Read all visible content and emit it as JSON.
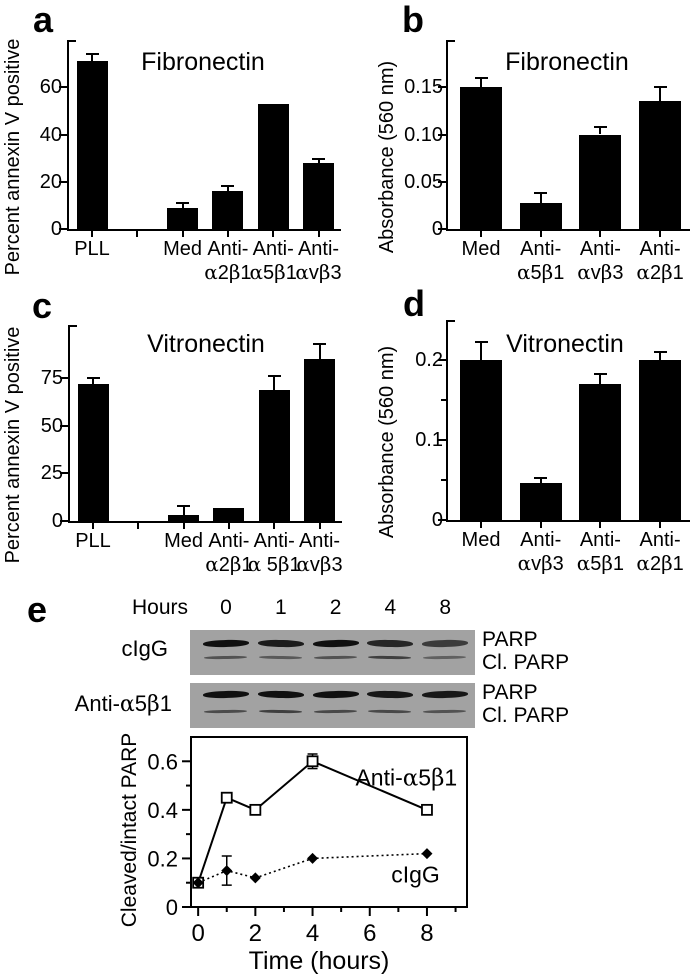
{
  "panels": {
    "a": {
      "letter": "a"
    },
    "b": {
      "letter": "b"
    },
    "c": {
      "letter": "c"
    },
    "d": {
      "letter": "d"
    },
    "e": {
      "letter": "e"
    }
  },
  "panel_e": {
    "hours_label": "Hours",
    "lanes": [
      "0",
      "1",
      "2",
      "4",
      "8"
    ],
    "blots": [
      {
        "row_label": "cIgG",
        "band_labels": [
          "PARP",
          "Cl. PARP"
        ],
        "parp_intensity": [
          1,
          0.92,
          1,
          0.85,
          0.7
        ],
        "cl_parp_intensity": [
          0.55,
          0.5,
          0.55,
          0.68,
          0.45
        ]
      },
      {
        "row_label": "Anti-α5β1",
        "band_labels": [
          "PARP",
          "Cl. PARP"
        ],
        "parp_intensity": [
          1,
          1,
          1,
          0.95,
          0.95
        ],
        "cl_parp_intensity": [
          0.6,
          0.68,
          0.62,
          0.62,
          0.55
        ]
      }
    ]
  },
  "chart_data": [
    {
      "id": "a",
      "type": "bar",
      "title": "Fibronectin",
      "xlabel": "",
      "ylabel": "Percent annexin V positive",
      "categories": [
        [
          "PLL"
        ],
        [
          "Med"
        ],
        [
          "Anti-",
          "α2β1"
        ],
        [
          "Anti-",
          "α5β1"
        ],
        [
          "Anti-",
          "αvβ3"
        ]
      ],
      "values": [
        71,
        9,
        16,
        53,
        28
      ],
      "errors": [
        3,
        2,
        2,
        0,
        1.5
      ],
      "ytick_values": [
        0,
        20,
        40,
        60
      ],
      "ytick_labels": [
        "0",
        "20",
        "40",
        "60"
      ],
      "ylim": [
        0,
        80
      ],
      "grid": false,
      "gap_after_first": true
    },
    {
      "id": "b",
      "type": "bar",
      "title": "Fibronectin",
      "xlabel": "",
      "ylabel": "Absorbance (560 nm)",
      "categories": [
        [
          "Med"
        ],
        [
          "Anti-",
          "α5β1"
        ],
        [
          "Anti-",
          "αvβ3"
        ],
        [
          "Anti-",
          "α2β1"
        ]
      ],
      "values": [
        0.15,
        0.028,
        0.1,
        0.135
      ],
      "errors": [
        0.01,
        0.01,
        0.008,
        0.015
      ],
      "ytick_values": [
        0,
        0.05,
        0.1,
        0.15
      ],
      "ytick_labels": [
        "0",
        "0.05",
        "0.10",
        "0.15"
      ],
      "ylim": [
        0,
        0.2
      ],
      "grid": false,
      "gap_after_first": false
    },
    {
      "id": "c",
      "type": "bar",
      "title": "Vitronectin",
      "xlabel": "",
      "ylabel": "Percent annexin V positive",
      "categories": [
        [
          "PLL"
        ],
        [
          "Med"
        ],
        [
          "Anti-",
          "α2β1"
        ],
        [
          "Anti-",
          "α 5β1"
        ],
        [
          "Anti-",
          "αvβ3"
        ]
      ],
      "values": [
        72,
        3,
        7,
        69,
        85
      ],
      "errors": [
        3,
        5,
        0,
        7,
        8
      ],
      "ytick_values": [
        0,
        25,
        50,
        75
      ],
      "ytick_labels": [
        "0",
        "25",
        "50",
        "75"
      ],
      "ylim": [
        0,
        103
      ],
      "grid": false,
      "gap_after_first": true
    },
    {
      "id": "d",
      "type": "bar",
      "title": "Vitronectin",
      "xlabel": "",
      "ylabel": "Absorbance (560 nm)",
      "categories": [
        [
          "Med"
        ],
        [
          "Anti-",
          "αvβ3"
        ],
        [
          "Anti-",
          "α5β1"
        ],
        [
          "Anti-",
          "α2β1"
        ]
      ],
      "values": [
        0.2,
        0.046,
        0.17,
        0.2
      ],
      "errors": [
        0.022,
        0.006,
        0.012,
        0.01
      ],
      "ytick_values": [
        0,
        0.05,
        0.1,
        0.15,
        0.2
      ],
      "ytick_labels": [
        "0",
        "",
        "0.1",
        "",
        "0.2"
      ],
      "ylim": [
        0,
        0.25
      ],
      "grid": false,
      "gap_after_first": false
    },
    {
      "id": "e",
      "type": "line",
      "title": "",
      "xlabel": "Time (hours)",
      "ylabel": "Cleaved/intact PARP",
      "xtick_values": [
        0,
        2,
        4,
        6,
        8
      ],
      "xtick_labels": [
        "0",
        "2",
        "4",
        "6",
        "8"
      ],
      "xminor": [
        1,
        3,
        5,
        7,
        9
      ],
      "ytick_values": [
        0,
        0.2,
        0.4,
        0.6
      ],
      "ytick_labels": [
        "0",
        "0.2",
        "0.4",
        "0.6"
      ],
      "yminor": [
        0.1,
        0.3,
        0.5
      ],
      "xlim": [
        -0.25,
        9.4
      ],
      "ylim": [
        0,
        0.7
      ],
      "grid": false,
      "series": [
        {
          "name": "Anti-α5β1",
          "marker": "open-square",
          "line_style": "solid",
          "x": [
            0,
            1,
            2,
            4,
            8
          ],
          "y": [
            0.1,
            0.45,
            0.4,
            0.6,
            0.4
          ],
          "errors": [
            0,
            0,
            0,
            0.03,
            0
          ],
          "label": {
            "text": "Anti-α5β1",
            "x": 5.5,
            "y": 0.5
          }
        },
        {
          "name": "cIgG",
          "marker": "filled-diamond",
          "line_style": "dotted",
          "x": [
            0,
            1,
            2,
            4,
            8
          ],
          "y": [
            0.1,
            0.15,
            0.12,
            0.2,
            0.22
          ],
          "errors": [
            0,
            0.06,
            0,
            0,
            0
          ],
          "label": {
            "text": "cIgG",
            "x": 6.75,
            "y": 0.1
          }
        }
      ]
    }
  ],
  "colors": {
    "bar": "#000000",
    "axis": "#000000",
    "text": "#000000",
    "blot_background": "#a2a2a2",
    "blot_band": "#101010",
    "background": "#ffffff"
  }
}
